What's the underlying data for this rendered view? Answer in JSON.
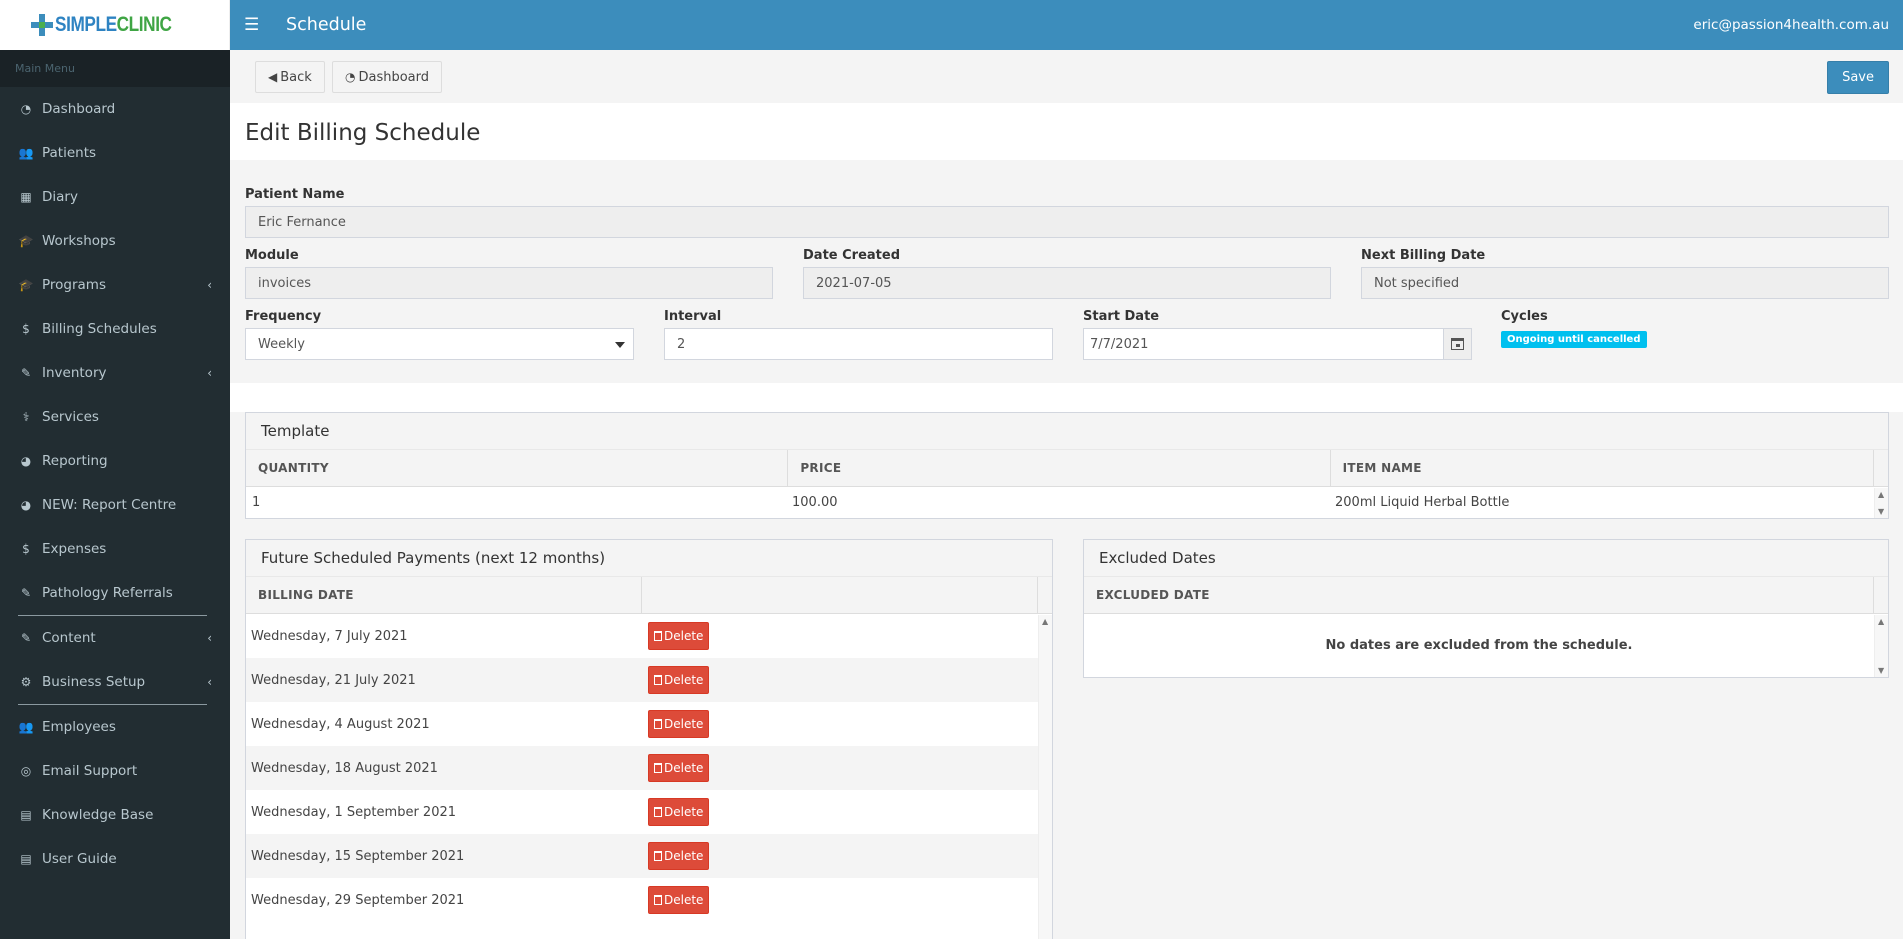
{
  "brand": {
    "logo_left": "SIMPLE",
    "logo_right": "CLINIC"
  },
  "topbar": {
    "title": "Schedule",
    "user_email": "eric@passion4health.com.au"
  },
  "sidebar": {
    "header": "Main Menu",
    "items": [
      {
        "label": "Dashboard",
        "icon": "dashboard-icon",
        "glyph": "◔"
      },
      {
        "label": "Patients",
        "icon": "users-icon",
        "glyph": "👥"
      },
      {
        "label": "Diary",
        "icon": "calendar-icon",
        "glyph": "▦"
      },
      {
        "label": "Workshops",
        "icon": "graduation-cap-icon",
        "glyph": "🎓"
      },
      {
        "label": "Programs",
        "icon": "graduation-cap-icon",
        "glyph": "🎓",
        "chevron": true
      },
      {
        "label": "Billing Schedules",
        "icon": "dollar-icon",
        "glyph": "$"
      },
      {
        "label": "Inventory",
        "icon": "edit-icon",
        "glyph": "✎",
        "chevron": true
      },
      {
        "label": "Services",
        "icon": "stethoscope-icon",
        "glyph": "⚕"
      },
      {
        "label": "Reporting",
        "icon": "pie-chart-icon",
        "glyph": "◕"
      },
      {
        "label": "NEW: Report Centre",
        "icon": "pie-chart-icon",
        "glyph": "◕"
      },
      {
        "label": "Expenses",
        "icon": "dollar-icon",
        "glyph": "$"
      },
      {
        "label": "Pathology Referrals",
        "icon": "edit-icon",
        "glyph": "✎"
      },
      {
        "label": "Content",
        "icon": "edit-icon",
        "glyph": "✎",
        "chevron": true
      },
      {
        "label": "Business Setup",
        "icon": "cogs-icon",
        "glyph": "⚙",
        "chevron": true
      },
      {
        "label": "Employees",
        "icon": "users-icon",
        "glyph": "👥"
      },
      {
        "label": "Email Support",
        "icon": "life-ring-icon",
        "glyph": "◎"
      },
      {
        "label": "Knowledge Base",
        "icon": "book-icon",
        "glyph": "▤"
      },
      {
        "label": "User Guide",
        "icon": "book-icon",
        "glyph": "▤"
      }
    ]
  },
  "toolbar": {
    "back_label": "Back",
    "dashboard_label": "Dashboard",
    "save_label": "Save"
  },
  "page": {
    "title": "Edit Billing Schedule"
  },
  "form": {
    "patient_name_label": "Patient Name",
    "patient_name_value": "Eric Fernance",
    "module_label": "Module",
    "module_value": "invoices",
    "date_created_label": "Date Created",
    "date_created_value": "2021-07-05",
    "next_billing_label": "Next Billing Date",
    "next_billing_value": "Not specified",
    "frequency_label": "Frequency",
    "frequency_value": "Weekly",
    "interval_label": "Interval",
    "interval_value": "2",
    "start_date_label": "Start Date",
    "start_date_value": "7/7/2021",
    "cycles_label": "Cycles",
    "cycles_badge": "Ongoing until cancelled"
  },
  "template": {
    "title": "Template",
    "columns": [
      "QUANTITY",
      "PRICE",
      "ITEM NAME"
    ],
    "rows": [
      {
        "quantity": "1",
        "price": "100.00",
        "item_name": "200ml Liquid Herbal Bottle"
      }
    ]
  },
  "future_payments": {
    "title": "Future Scheduled Payments (next 12 months)",
    "column": "BILLING DATE",
    "delete_label": "Delete",
    "rows": [
      "Wednesday, 7 July 2021",
      "Wednesday, 21 July 2021",
      "Wednesday, 4 August 2021",
      "Wednesday, 18 August 2021",
      "Wednesday, 1 September 2021",
      "Wednesday, 15 September 2021",
      "Wednesday, 29 September 2021"
    ]
  },
  "excluded": {
    "title": "Excluded Dates",
    "column": "EXCLUDED DATE",
    "empty_message": "No dates are excluded from the schedule."
  },
  "colors": {
    "primary": "#3c8dbc",
    "sidebar": "#222d32",
    "danger": "#dd4b39",
    "info": "#00c0ef"
  }
}
